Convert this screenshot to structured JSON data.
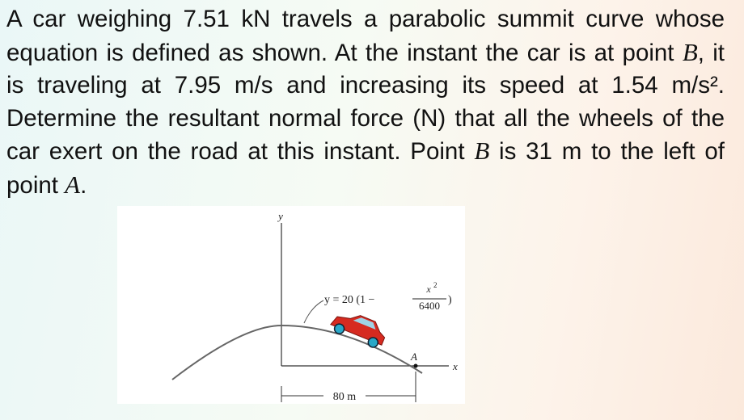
{
  "problem": {
    "text": [
      "A car weighing 7.51 kN travels a parabolic summit curve whose equation is defined as shown. At the instant the car is at point ",
      "B",
      ", it is traveling at 7.95 m/s and increasing its speed at 1.54 m/s². Determine the resultant normal force (N) that all the wheels of the car exert on the road at this instant. Point ",
      "B",
      " is 31 m to the left of point ",
      "A",
      "."
    ]
  },
  "figure": {
    "y_axis_label": "y",
    "x_axis_label": "x",
    "point_label": "A",
    "equation": {
      "lhs": "y = 20 (1 −",
      "numerator": "x",
      "exponent": "2",
      "denominator": "6400",
      "close": ")"
    },
    "dimension": "80 m"
  }
}
